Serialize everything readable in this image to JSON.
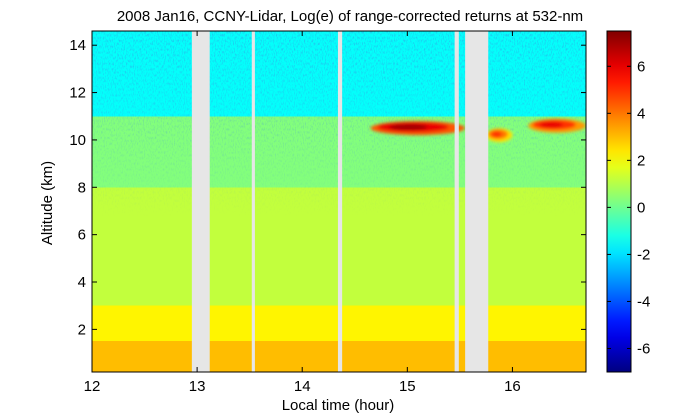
{
  "chart_data": {
    "type": "heatmap",
    "title": "2008 Jan16, CCNY-Lidar, Log(e) of range-corrected returns at 532-nm",
    "xlabel": "Local time (hour)",
    "ylabel": "Altitude (km)",
    "xlim": [
      12.0,
      16.7
    ],
    "ylim": [
      0.2,
      14.6
    ],
    "xticks": [
      12,
      13,
      14,
      15,
      16
    ],
    "yticks": [
      2,
      4,
      6,
      8,
      10,
      12,
      14
    ],
    "colorbar": {
      "min": -7,
      "max": 7.5,
      "ticks": [
        -6,
        -4,
        -2,
        0,
        2,
        4,
        6
      ],
      "colormap": "jet"
    },
    "data_gaps": [
      {
        "start": 12.95,
        "end": 13.12
      },
      {
        "start": 13.52,
        "end": 13.55
      },
      {
        "start": 14.34,
        "end": 14.38
      },
      {
        "start": 15.45,
        "end": 15.49
      },
      {
        "start": 15.55,
        "end": 15.77
      }
    ],
    "features": [
      {
        "type": "cloud",
        "x_start": 14.65,
        "x_end": 15.55,
        "altitude_km": 10.5,
        "value": 6
      },
      {
        "type": "cloud",
        "x_start": 15.75,
        "x_end": 16.0,
        "altitude_km": 10.2,
        "value": 4
      },
      {
        "type": "cloud",
        "x_start": 16.15,
        "x_end": 16.7,
        "altitude_km": 10.6,
        "value": 5
      }
    ],
    "layers": [
      {
        "name": "",
        "altitude_top_km": 1.5,
        "value": 3.0
      },
      {
        "name": "",
        "altitude_top_km": 3.0,
        "value": 2.2
      },
      {
        "name": "",
        "altitude_top_km": 8.0,
        "value": 1.2
      },
      {
        "name": "",
        "altitude_top_km": 11.0,
        "value": 0.3
      },
      {
        "name": "",
        "altitude_top_km": 14.6,
        "value": -1.5
      }
    ]
  }
}
